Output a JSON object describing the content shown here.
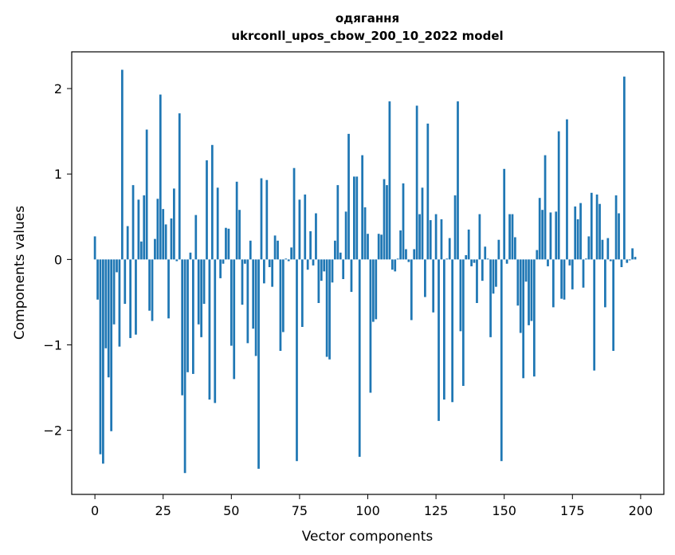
{
  "chart_data": {
    "type": "bar",
    "title_line1": "одягання",
    "title_line2": "ukrconll_upos_cbow_200_10_2022 model",
    "xlabel": "Vector components",
    "ylabel": "Components values",
    "xlim": [
      -8.5,
      208.5
    ],
    "ylim": [
      -2.75,
      2.43
    ],
    "xticks": [
      0,
      25,
      50,
      75,
      100,
      125,
      150,
      175,
      200
    ],
    "yticks": [
      -2,
      -1,
      0,
      1,
      2
    ],
    "ytick_labels": [
      "−2",
      "−1",
      "0",
      "1",
      "2"
    ],
    "color": "#1f77b4",
    "values": [
      0.27,
      -0.47,
      -2.28,
      -2.39,
      -1.04,
      -1.38,
      -2.01,
      -0.76,
      -0.15,
      -1.02,
      2.22,
      -0.52,
      0.39,
      -0.92,
      0.87,
      -0.88,
      0.7,
      0.21,
      0.75,
      1.52,
      -0.6,
      -0.72,
      0.24,
      0.71,
      1.93,
      0.59,
      0.41,
      -0.69,
      0.48,
      0.83,
      -0.02,
      1.71,
      -1.59,
      -2.5,
      -1.32,
      0.08,
      -1.34,
      0.52,
      -0.76,
      -0.91,
      -0.52,
      1.16,
      -1.64,
      1.34,
      -1.68,
      0.84,
      -0.22,
      -0.05,
      0.37,
      0.36,
      -1.01,
      -1.4,
      0.91,
      0.58,
      -0.53,
      -0.05,
      -0.98,
      0.22,
      -0.81,
      -1.13,
      -2.45,
      0.95,
      -0.28,
      0.93,
      -0.09,
      -0.32,
      0.28,
      0.22,
      -1.07,
      -0.85,
      0.01,
      -0.02,
      0.14,
      1.07,
      -2.36,
      0.7,
      -0.79,
      0.76,
      -0.12,
      0.33,
      -0.07,
      0.54,
      -0.51,
      -0.25,
      -0.14,
      -1.14,
      -1.17,
      -0.27,
      0.22,
      0.87,
      0.08,
      -0.23,
      0.56,
      1.47,
      -0.38,
      0.97,
      0.97,
      -2.31,
      1.22,
      0.61,
      0.3,
      -1.56,
      -0.73,
      -0.7,
      0.3,
      0.29,
      0.94,
      0.87,
      1.85,
      -0.12,
      -0.14,
      0.01,
      0.34,
      0.89,
      0.12,
      -0.03,
      -0.71,
      0.12,
      1.8,
      0.53,
      0.84,
      -0.44,
      1.59,
      0.46,
      -0.62,
      0.53,
      -1.89,
      0.47,
      -1.64,
      0.01,
      0.25,
      -1.67,
      0.75,
      1.85,
      -0.84,
      -1.48,
      0.05,
      0.35,
      -0.08,
      -0.04,
      -0.51,
      0.53,
      -0.25,
      0.15,
      0.01,
      -0.91,
      -0.4,
      -0.32,
      0.23,
      -2.36,
      1.06,
      -0.05,
      0.53,
      0.53,
      0.26,
      -0.54,
      -0.86,
      -1.39,
      -0.26,
      -0.77,
      -0.72,
      -1.37,
      0.11,
      0.72,
      0.58,
      1.22,
      -0.08,
      0.55,
      -0.56,
      0.56,
      1.5,
      -0.46,
      -0.47,
      1.64,
      -0.07,
      -0.35,
      0.62,
      0.47,
      0.66,
      -0.33,
      0.01,
      0.27,
      0.78,
      -1.3,
      0.76,
      0.65,
      0.23,
      -0.56,
      0.25,
      -0.02,
      -1.07,
      0.75,
      0.54,
      -0.09,
      2.14,
      -0.04,
      -0.01,
      0.13,
      0.03
    ]
  }
}
